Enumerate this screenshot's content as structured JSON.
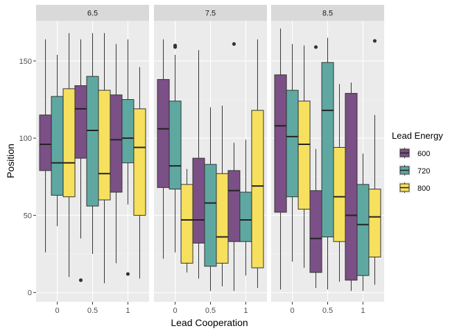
{
  "chart_data": {
    "type": "boxplot",
    "xlabel": "Lead Cooperation",
    "ylabel": "Position",
    "ylim": [
      -6,
      176
    ],
    "yticks": [
      0,
      50,
      100,
      150
    ],
    "ytick_labels": [
      "0",
      "50",
      "100",
      "150"
    ],
    "categories": [
      "0",
      "0.5",
      "1"
    ],
    "legend_title": "Lead Energy",
    "legend_position": "right",
    "series": [
      {
        "name": "600",
        "color": "#7B5086"
      },
      {
        "name": "720",
        "color": "#5FA8A2"
      },
      {
        "name": "800",
        "color": "#F6E05E"
      }
    ],
    "facets": [
      {
        "label": "6.5",
        "groups": [
          {
            "x": "0",
            "boxes": [
              {
                "series": "600",
                "min": 26,
                "q1": 79,
                "median": 96,
                "q3": 115,
                "max": 164,
                "outliers": []
              },
              {
                "series": "720",
                "min": 43,
                "q1": 63,
                "median": 84,
                "q3": 127,
                "max": 154,
                "outliers": []
              },
              {
                "series": "800",
                "min": 10,
                "q1": 62,
                "median": 84,
                "q3": 132,
                "max": 168,
                "outliers": []
              }
            ]
          },
          {
            "x": "0.5",
            "boxes": [
              {
                "series": "600",
                "min": 35,
                "q1": 87,
                "median": 119,
                "q3": 134,
                "max": 164,
                "outliers": [
                  8
                ]
              },
              {
                "series": "720",
                "min": 25,
                "q1": 56,
                "median": 105,
                "q3": 140,
                "max": 168,
                "outliers": []
              },
              {
                "series": "800",
                "min": 6,
                "q1": 60,
                "median": 77,
                "q3": 131,
                "max": 168,
                "outliers": []
              }
            ]
          },
          {
            "x": "1",
            "boxes": [
              {
                "series": "600",
                "min": 19,
                "q1": 65,
                "median": 99,
                "q3": 128,
                "max": 161,
                "outliers": []
              },
              {
                "series": "720",
                "min": 57,
                "q1": 84,
                "median": 100,
                "q3": 125,
                "max": 164,
                "outliers": [
                  12
                ]
              },
              {
                "series": "800",
                "min": 9,
                "q1": 50,
                "median": 94,
                "q3": 119,
                "max": 146,
                "outliers": []
              }
            ]
          }
        ]
      },
      {
        "label": "7.5",
        "groups": [
          {
            "x": "0",
            "boxes": [
              {
                "series": "600",
                "min": 22,
                "q1": 68,
                "median": 106,
                "q3": 138,
                "max": 164,
                "outliers": []
              },
              {
                "series": "720",
                "min": 26,
                "q1": 67,
                "median": 82,
                "q3": 124,
                "max": 154,
                "outliers": [
                  159,
                  160
                ]
              },
              {
                "series": "800",
                "min": 13,
                "q1": 19,
                "median": 47,
                "q3": 70,
                "max": 80,
                "outliers": []
              }
            ]
          },
          {
            "x": "0.5",
            "boxes": [
              {
                "series": "600",
                "min": 9,
                "q1": 32,
                "median": 47,
                "q3": 87,
                "max": 157,
                "outliers": []
              },
              {
                "series": "720",
                "min": 1,
                "q1": 17,
                "median": 58,
                "q3": 83,
                "max": 120,
                "outliers": []
              },
              {
                "series": "800",
                "min": 4,
                "q1": 19,
                "median": 36,
                "q3": 77,
                "max": 121,
                "outliers": []
              }
            ]
          },
          {
            "x": "1",
            "boxes": [
              {
                "series": "600",
                "min": 1,
                "q1": 33,
                "median": 66,
                "q3": 79,
                "max": 97,
                "outliers": [
                  161
                ]
              },
              {
                "series": "720",
                "min": 11,
                "q1": 33,
                "median": 47,
                "q3": 65,
                "max": 99,
                "outliers": []
              },
              {
                "series": "800",
                "min": 3,
                "q1": 16,
                "median": 69,
                "q3": 118,
                "max": 164,
                "outliers": []
              }
            ]
          }
        ]
      },
      {
        "label": "8.5",
        "groups": [
          {
            "x": "0",
            "boxes": [
              {
                "series": "600",
                "min": 2,
                "q1": 52,
                "median": 108,
                "q3": 141,
                "max": 171,
                "outliers": []
              },
              {
                "series": "720",
                "min": 20,
                "q1": 62,
                "median": 101,
                "q3": 131,
                "max": 161,
                "outliers": []
              },
              {
                "series": "800",
                "min": 16,
                "q1": 54,
                "median": 96,
                "q3": 124,
                "max": 160,
                "outliers": []
              }
            ]
          },
          {
            "x": "0.5",
            "boxes": [
              {
                "series": "600",
                "min": 3,
                "q1": 13,
                "median": 35,
                "q3": 66,
                "max": 93,
                "outliers": [
                  159
                ]
              },
              {
                "series": "720",
                "min": 2,
                "q1": 36,
                "median": 118,
                "q3": 149,
                "max": 165,
                "outliers": []
              },
              {
                "series": "800",
                "min": 7,
                "q1": 33,
                "median": 62,
                "q3": 94,
                "max": 135,
                "outliers": []
              }
            ]
          },
          {
            "x": "1",
            "boxes": [
              {
                "series": "600",
                "min": 1,
                "q1": 8,
                "median": 50,
                "q3": 129,
                "max": 136,
                "outliers": []
              },
              {
                "series": "720",
                "min": 1,
                "q1": 11,
                "median": 44,
                "q3": 70,
                "max": 90,
                "outliers": []
              },
              {
                "series": "800",
                "min": 5,
                "q1": 23,
                "median": 49,
                "q3": 67,
                "max": 115,
                "outliers": [
                  163
                ]
              }
            ]
          }
        ]
      }
    ]
  }
}
